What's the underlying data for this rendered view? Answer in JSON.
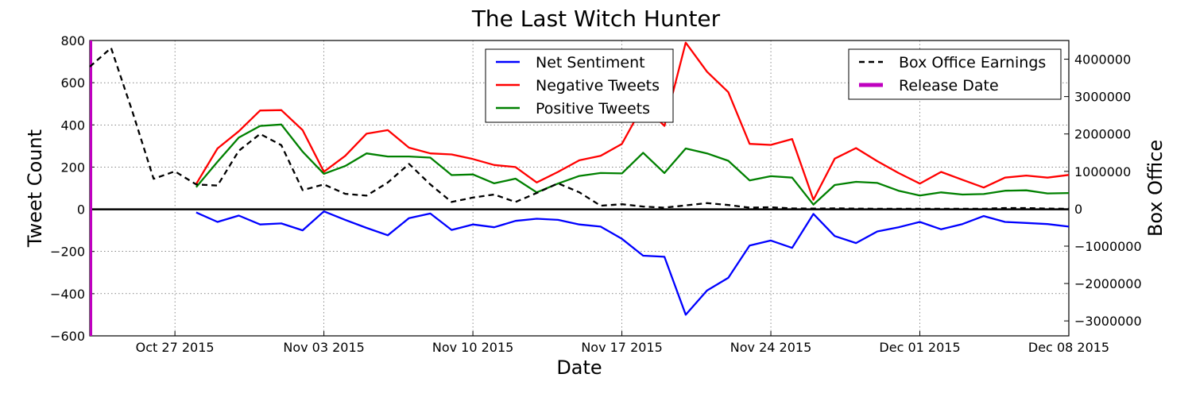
{
  "chart_data": {
    "type": "line",
    "title": "The Last Witch Hunter",
    "xlabel": "Date",
    "ylabel": "Tweet Count",
    "y2label": "Box Office",
    "x_start": "2015-10-23",
    "x_end": "2015-12-08",
    "xticks": [
      {
        "date": "2015-10-27",
        "label": "Oct 27 2015"
      },
      {
        "date": "2015-11-03",
        "label": "Nov 03 2015"
      },
      {
        "date": "2015-11-10",
        "label": "Nov 10 2015"
      },
      {
        "date": "2015-11-17",
        "label": "Nov 17 2015"
      },
      {
        "date": "2015-11-24",
        "label": "Nov 24 2015"
      },
      {
        "date": "2015-12-01",
        "label": "Dec 01 2015"
      },
      {
        "date": "2015-12-08",
        "label": "Dec 08 2015"
      }
    ],
    "ylim": [
      -600,
      800
    ],
    "yticks": [
      -600,
      -400,
      -200,
      0,
      200,
      400,
      600,
      800
    ],
    "ytick_labels": [
      "−600",
      "−400",
      "−200",
      "0",
      "200",
      "400",
      "600",
      "800"
    ],
    "y2lim": [
      -3400000,
      4500000
    ],
    "y2ticks": [
      -3000000,
      -2000000,
      -1000000,
      0,
      1000000,
      2000000,
      3000000,
      4000000
    ],
    "y2tick_labels": [
      "−3000000",
      "−2000000",
      "−1000000",
      "0",
      "1000000",
      "2000000",
      "3000000",
      "4000000"
    ],
    "grid": true,
    "release_date": "2015-10-23",
    "series": [
      {
        "name": "Net Sentiment",
        "axis": "left",
        "color": "#0000ff",
        "style": "solid",
        "x": [
          "2015-10-28",
          "2015-10-29",
          "2015-10-30",
          "2015-10-31",
          "2015-11-01",
          "2015-11-02",
          "2015-11-03",
          "2015-11-04",
          "2015-11-05",
          "2015-11-06",
          "2015-11-07",
          "2015-11-08",
          "2015-11-09",
          "2015-11-10",
          "2015-11-11",
          "2015-11-12",
          "2015-11-13",
          "2015-11-14",
          "2015-11-15",
          "2015-11-16",
          "2015-11-17",
          "2015-11-18",
          "2015-11-19",
          "2015-11-20",
          "2015-11-21",
          "2015-11-22",
          "2015-11-23",
          "2015-11-24",
          "2015-11-25",
          "2015-11-26",
          "2015-11-27",
          "2015-11-28",
          "2015-11-29",
          "2015-11-30",
          "2015-12-01",
          "2015-12-02",
          "2015-12-03",
          "2015-12-04",
          "2015-12-05",
          "2015-12-06",
          "2015-12-07",
          "2015-12-08"
        ],
        "values": [
          -15,
          -60,
          -30,
          -72,
          -67,
          -100,
          -10,
          -50,
          -88,
          -123,
          -42,
          -20,
          -98,
          -72,
          -85,
          -55,
          -45,
          -50,
          -72,
          -82,
          -140,
          -220,
          -225,
          -500,
          -385,
          -325,
          -172,
          -148,
          -183,
          -22,
          -127,
          -160,
          -105,
          -85,
          -60,
          -95,
          -70,
          -32,
          -60,
          -65,
          -70,
          -82
        ]
      },
      {
        "name": "Negative Tweets",
        "axis": "left",
        "color": "#ff0000",
        "style": "solid",
        "x": [
          "2015-10-28",
          "2015-10-29",
          "2015-10-30",
          "2015-10-31",
          "2015-11-01",
          "2015-11-02",
          "2015-11-03",
          "2015-11-04",
          "2015-11-05",
          "2015-11-06",
          "2015-11-07",
          "2015-11-08",
          "2015-11-09",
          "2015-11-10",
          "2015-11-11",
          "2015-11-12",
          "2015-11-13",
          "2015-11-14",
          "2015-11-15",
          "2015-11-16",
          "2015-11-17",
          "2015-11-18",
          "2015-11-19",
          "2015-11-20",
          "2015-11-21",
          "2015-11-22",
          "2015-11-23",
          "2015-11-24",
          "2015-11-25",
          "2015-11-26",
          "2015-11-27",
          "2015-11-28",
          "2015-11-29",
          "2015-11-30",
          "2015-12-01",
          "2015-12-02",
          "2015-12-03",
          "2015-12-04",
          "2015-12-05",
          "2015-12-06",
          "2015-12-07",
          "2015-12-08"
        ],
        "values": [
          120,
          288,
          370,
          468,
          470,
          375,
          178,
          253,
          358,
          375,
          292,
          265,
          260,
          238,
          210,
          200,
          127,
          177,
          232,
          253,
          310,
          492,
          395,
          790,
          652,
          555,
          310,
          305,
          333,
          45,
          240,
          290,
          228,
          172,
          122,
          177,
          140,
          103,
          150,
          160,
          150,
          163
        ]
      },
      {
        "name": "Positive Tweets",
        "axis": "left",
        "color": "#008000",
        "style": "solid",
        "x": [
          "2015-10-28",
          "2015-10-29",
          "2015-10-30",
          "2015-10-31",
          "2015-11-01",
          "2015-11-02",
          "2015-11-03",
          "2015-11-04",
          "2015-11-05",
          "2015-11-06",
          "2015-11-07",
          "2015-11-08",
          "2015-11-09",
          "2015-11-10",
          "2015-11-11",
          "2015-11-12",
          "2015-11-13",
          "2015-11-14",
          "2015-11-15",
          "2015-11-16",
          "2015-11-17",
          "2015-11-18",
          "2015-11-19",
          "2015-11-20",
          "2015-11-21",
          "2015-11-22",
          "2015-11-23",
          "2015-11-24",
          "2015-11-25",
          "2015-11-26",
          "2015-11-27",
          "2015-11-28",
          "2015-11-29",
          "2015-11-30",
          "2015-12-01",
          "2015-12-02",
          "2015-12-03",
          "2015-12-04",
          "2015-12-05",
          "2015-12-06",
          "2015-12-07",
          "2015-12-08"
        ],
        "values": [
          105,
          225,
          340,
          395,
          402,
          273,
          168,
          205,
          265,
          250,
          250,
          245,
          162,
          165,
          123,
          145,
          80,
          122,
          158,
          172,
          170,
          268,
          172,
          288,
          265,
          230,
          137,
          157,
          150,
          22,
          115,
          130,
          125,
          88,
          65,
          80,
          70,
          72,
          88,
          90,
          75,
          77
        ]
      },
      {
        "name": "Box Office Earnings",
        "axis": "right",
        "color": "#000000",
        "style": "dashed",
        "x": [
          "2015-10-23",
          "2015-10-24",
          "2015-10-25",
          "2015-10-26",
          "2015-10-27",
          "2015-10-28",
          "2015-10-29",
          "2015-10-30",
          "2015-10-31",
          "2015-11-01",
          "2015-11-02",
          "2015-11-03",
          "2015-11-04",
          "2015-11-05",
          "2015-11-06",
          "2015-11-07",
          "2015-11-08",
          "2015-11-09",
          "2015-11-10",
          "2015-11-11",
          "2015-11-12",
          "2015-11-13",
          "2015-11-14",
          "2015-11-15",
          "2015-11-16",
          "2015-11-17",
          "2015-11-18",
          "2015-11-19",
          "2015-11-20",
          "2015-11-21",
          "2015-11-22",
          "2015-11-23",
          "2015-11-24",
          "2015-11-25",
          "2015-11-26",
          "2015-11-27",
          "2015-11-28",
          "2015-11-29",
          "2015-11-30",
          "2015-12-01",
          "2015-12-02",
          "2015-12-03",
          "2015-12-04",
          "2015-12-05",
          "2015-12-06",
          "2015-12-07",
          "2015-12-08"
        ],
        "values": [
          3800000,
          4300000,
          2600000,
          800000,
          1000000,
          650000,
          620000,
          1550000,
          2000000,
          1700000,
          500000,
          650000,
          400000,
          350000,
          700000,
          1200000,
          650000,
          180000,
          300000,
          380000,
          180000,
          420000,
          680000,
          440000,
          80000,
          120000,
          60000,
          30000,
          90000,
          150000,
          100000,
          30000,
          40000,
          10000,
          5000,
          10000,
          5000,
          0,
          0,
          0,
          0,
          0,
          0,
          20000,
          20000,
          5000,
          0
        ]
      }
    ],
    "legend_left": {
      "position": "upper-center",
      "entries": [
        {
          "name": "Net Sentiment",
          "color": "#0000ff"
        },
        {
          "name": "Negative Tweets",
          "color": "#ff0000"
        },
        {
          "name": "Positive Tweets",
          "color": "#008000"
        }
      ]
    },
    "legend_right": {
      "position": "upper-right",
      "entries": [
        {
          "name": "Box Office Earnings",
          "color": "#000000",
          "style": "dashed"
        },
        {
          "name": "Release Date",
          "color": "#bf00bf",
          "style": "thick"
        }
      ]
    }
  }
}
